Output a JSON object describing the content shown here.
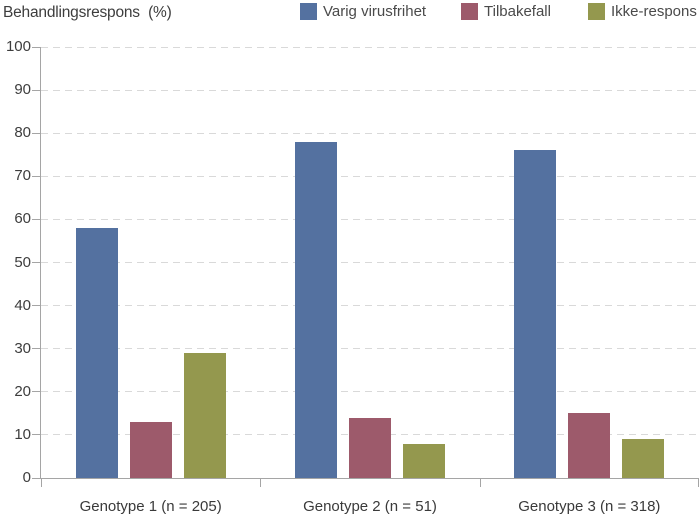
{
  "header": {
    "title": "Behandlingsrespons  (%)"
  },
  "chart_data": {
    "type": "bar",
    "title": "Behandlingsrespons (%)",
    "categories": [
      "Genotype 1 (n = 205)",
      "Genotype 2 (n = 51)",
      "Genotype 3 (n = 318)"
    ],
    "series": [
      {
        "name": "Varig virusfrihet",
        "color": "#5471a0",
        "values": [
          58,
          78,
          76
        ]
      },
      {
        "name": "Tilbakefall",
        "color": "#9d5a6b",
        "values": [
          13,
          14,
          15
        ]
      },
      {
        "name": "Ikke-respons",
        "color": "#94984e",
        "values": [
          29,
          8,
          9
        ]
      }
    ],
    "xlabel": "",
    "ylabel": "Behandlingsrespons (%)",
    "ylim": [
      0,
      100
    ],
    "yticks": [
      0,
      10,
      20,
      30,
      40,
      50,
      60,
      70,
      80,
      90,
      100
    ],
    "grid": "horizontal-dashed",
    "legend_position": "top-right"
  },
  "colors": {
    "axis": "#a5a5a5",
    "gridline": "#d9d9d9",
    "title_text": "#3d3d3d",
    "axis_text": "#3d3d3d",
    "legend_text": "#4a4a4a",
    "background": "#ffffff"
  }
}
